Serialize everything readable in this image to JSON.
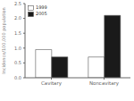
{
  "chart_data": {
    "type": "bar",
    "categories": [
      "Cavitary",
      "Noncavitary"
    ],
    "series": [
      {
        "name": "1999",
        "color": "#ffffff",
        "values": [
          0.95,
          0.7
        ]
      },
      {
        "name": "2005",
        "color": "#1a1a1a",
        "values": [
          0.7,
          2.1
        ]
      }
    ],
    "ylabel": "Incidence/100,000 population",
    "ylim": [
      0,
      2.5
    ],
    "yticks": [
      {
        "value": 0.0,
        "label": "0.0"
      },
      0.5,
      {
        "value": 1.0,
        "label": "1.0"
      },
      1.5,
      {
        "value": 2.0,
        "label": "2.0"
      },
      2.5
    ],
    "legend": "upper left"
  }
}
